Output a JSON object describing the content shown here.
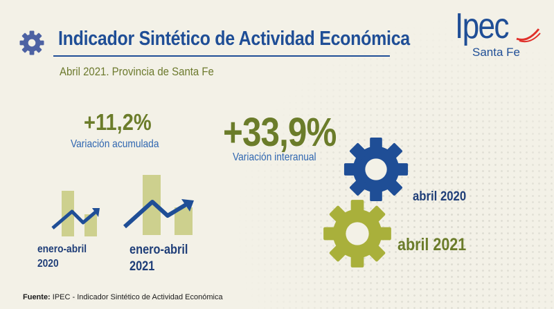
{
  "header": {
    "title": "Indicador Sintético de Actividad Económica",
    "subtitle": "Abril 2021. Provincia de Santa Fe"
  },
  "logo": {
    "name": "Ipec",
    "subtitle": "Santa Fe"
  },
  "indicators": {
    "accumulated": {
      "value": "+11,2%",
      "label": "Variación acumulada"
    },
    "interannual": {
      "value": "+33,9%",
      "label": "Variación interanual"
    }
  },
  "periods": {
    "p2020": {
      "line1": "enero-abril",
      "line2": "2020"
    },
    "p2021": {
      "line1": "enero-abril",
      "line2": "2021"
    }
  },
  "gears": {
    "g2020": {
      "label": "abril 2020",
      "color": "#1f4e96"
    },
    "g2021": {
      "label": "abril 2021",
      "color": "#a9b03b"
    }
  },
  "footer": {
    "source_label": "Fuente:",
    "source_text": " IPEC - Indicador Sintético de Actividad Económica"
  },
  "colors": {
    "blue": "#1f4e96",
    "olive": "#6b7c2a",
    "bar": "#cdd08e",
    "red": "#e0302a"
  },
  "icons": [
    "gear-icon",
    "trend-arrow-icon"
  ]
}
